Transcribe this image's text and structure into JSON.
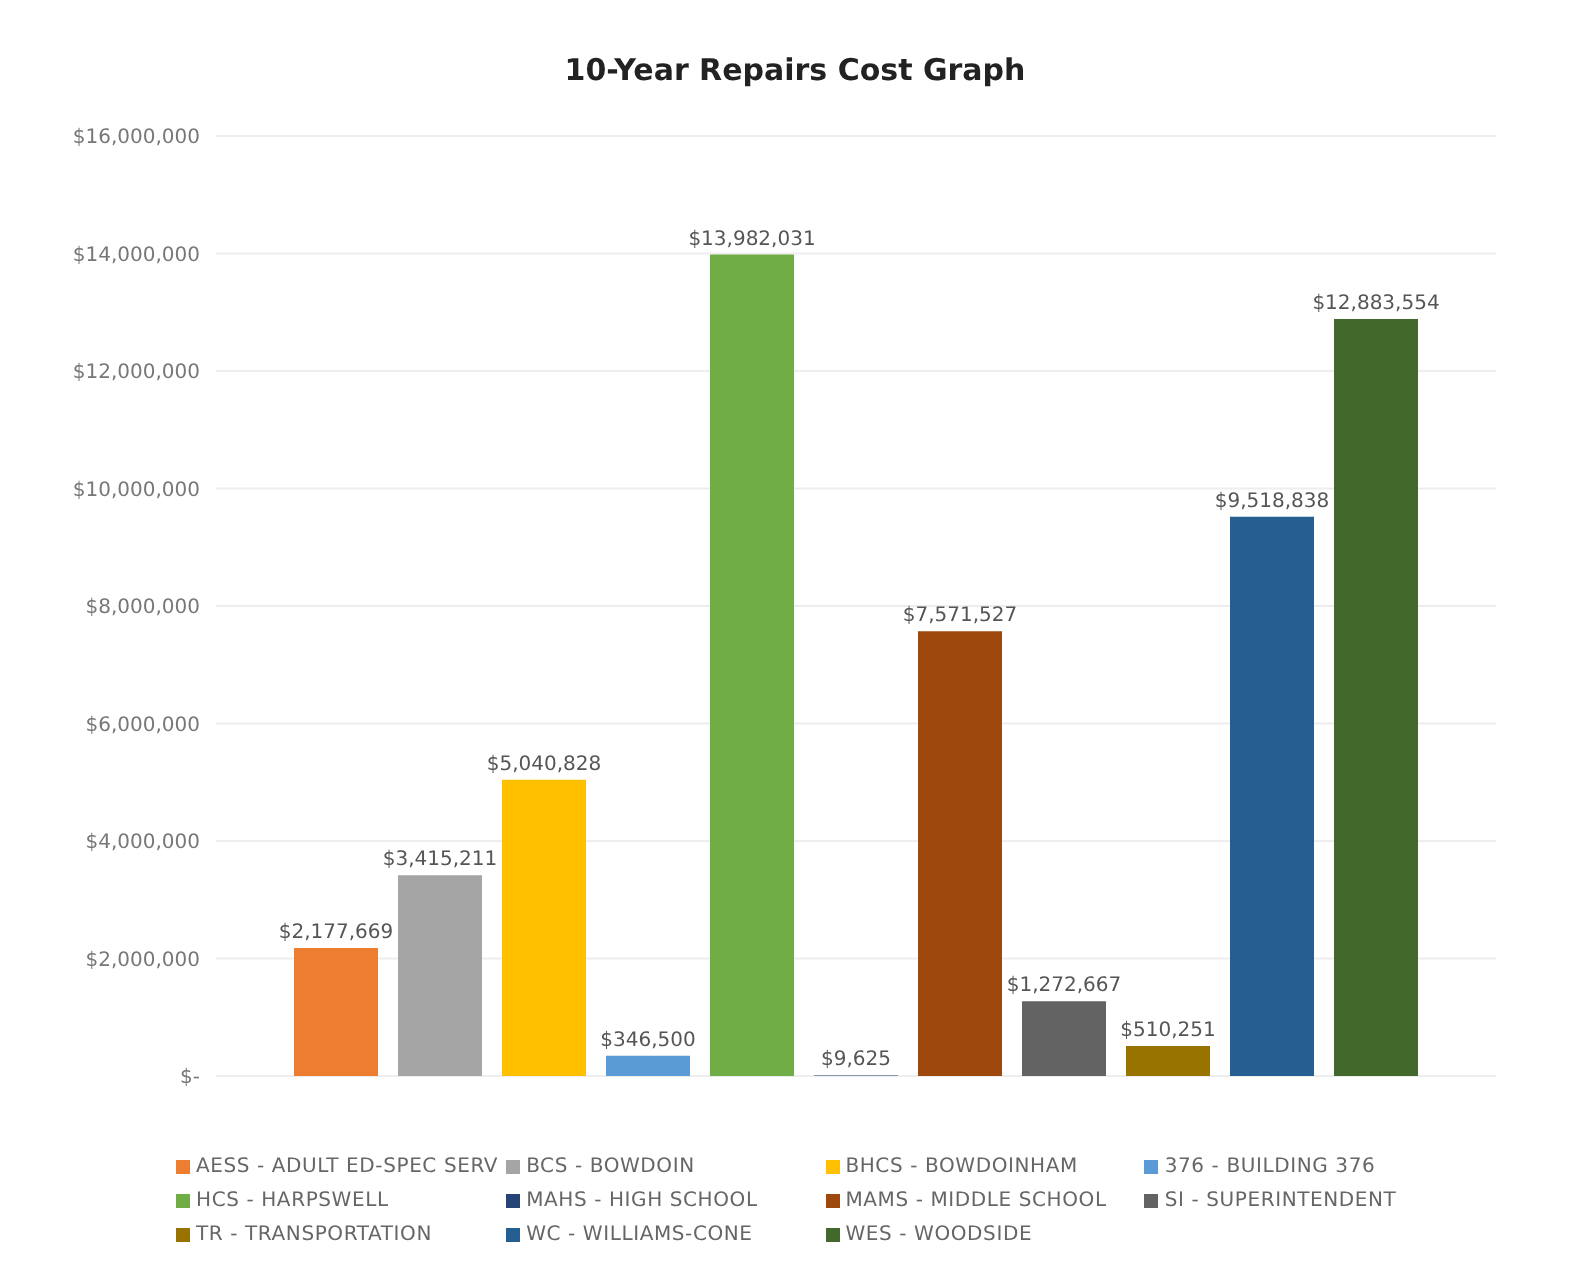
{
  "chart_data": {
    "type": "bar",
    "title": "10-Year Repairs Cost Graph",
    "categories": [
      null
    ],
    "series": [
      {
        "name": "AESS - ADULT ED-SPEC SERV",
        "color": "#ed7d31",
        "values": [
          2177669
        ],
        "value_labels": [
          "$2,177,669"
        ]
      },
      {
        "name": "BCS - BOWDOIN",
        "color": "#a5a5a5",
        "values": [
          3415211
        ],
        "value_labels": [
          "$3,415,211"
        ]
      },
      {
        "name": "BHCS - BOWDOINHAM",
        "color": "#ffc000",
        "values": [
          5040828
        ],
        "value_labels": [
          "$5,040,828"
        ]
      },
      {
        "name": "376 - BUILDING 376",
        "color": "#5b9bd5",
        "values": [
          346500
        ],
        "value_labels": [
          "$346,500"
        ]
      },
      {
        "name": "HCS - HARPSWELL",
        "color": "#70ad47",
        "values": [
          13982031
        ],
        "value_labels": [
          "$13,982,031"
        ]
      },
      {
        "name": "MAHS - HIGH SCHOOL",
        "color": "#264478",
        "values": [
          9625
        ],
        "value_labels": [
          "$9,625"
        ]
      },
      {
        "name": "MAMS - MIDDLE SCHOOL",
        "color": "#9e480e",
        "values": [
          7571527
        ],
        "value_labels": [
          "$7,571,527"
        ]
      },
      {
        "name": "SI - SUPERINTENDENT",
        "color": "#636363",
        "values": [
          1272667
        ],
        "value_labels": [
          "$1,272,667"
        ]
      },
      {
        "name": "TR - TRANSPORTATION",
        "color": "#997300",
        "values": [
          510251
        ],
        "value_labels": [
          "$510,251"
        ]
      },
      {
        "name": "WC - WILLIAMS-CONE",
        "color": "#255e91",
        "values": [
          9518838
        ],
        "value_labels": [
          "$9,518,838"
        ]
      },
      {
        "name": "WES - WOODSIDE",
        "color": "#43682b",
        "values": [
          12883554
        ],
        "value_labels": [
          "$12,883,554"
        ]
      }
    ],
    "ylim": [
      0,
      16000000
    ],
    "yticks": [
      {
        "value": 0,
        "label": "$-"
      },
      {
        "value": 2000000,
        "label": "$2,000,000"
      },
      {
        "value": 4000000,
        "label": "$4,000,000"
      },
      {
        "value": 6000000,
        "label": "$6,000,000"
      },
      {
        "value": 8000000,
        "label": "$8,000,000"
      },
      {
        "value": 10000000,
        "label": "$10,000,000"
      },
      {
        "value": 12000000,
        "label": "$12,000,000"
      },
      {
        "value": 14000000,
        "label": "$14,000,000"
      },
      {
        "value": 16000000,
        "label": "$16,000,000"
      }
    ],
    "grid": "y",
    "legend": "bottom"
  }
}
